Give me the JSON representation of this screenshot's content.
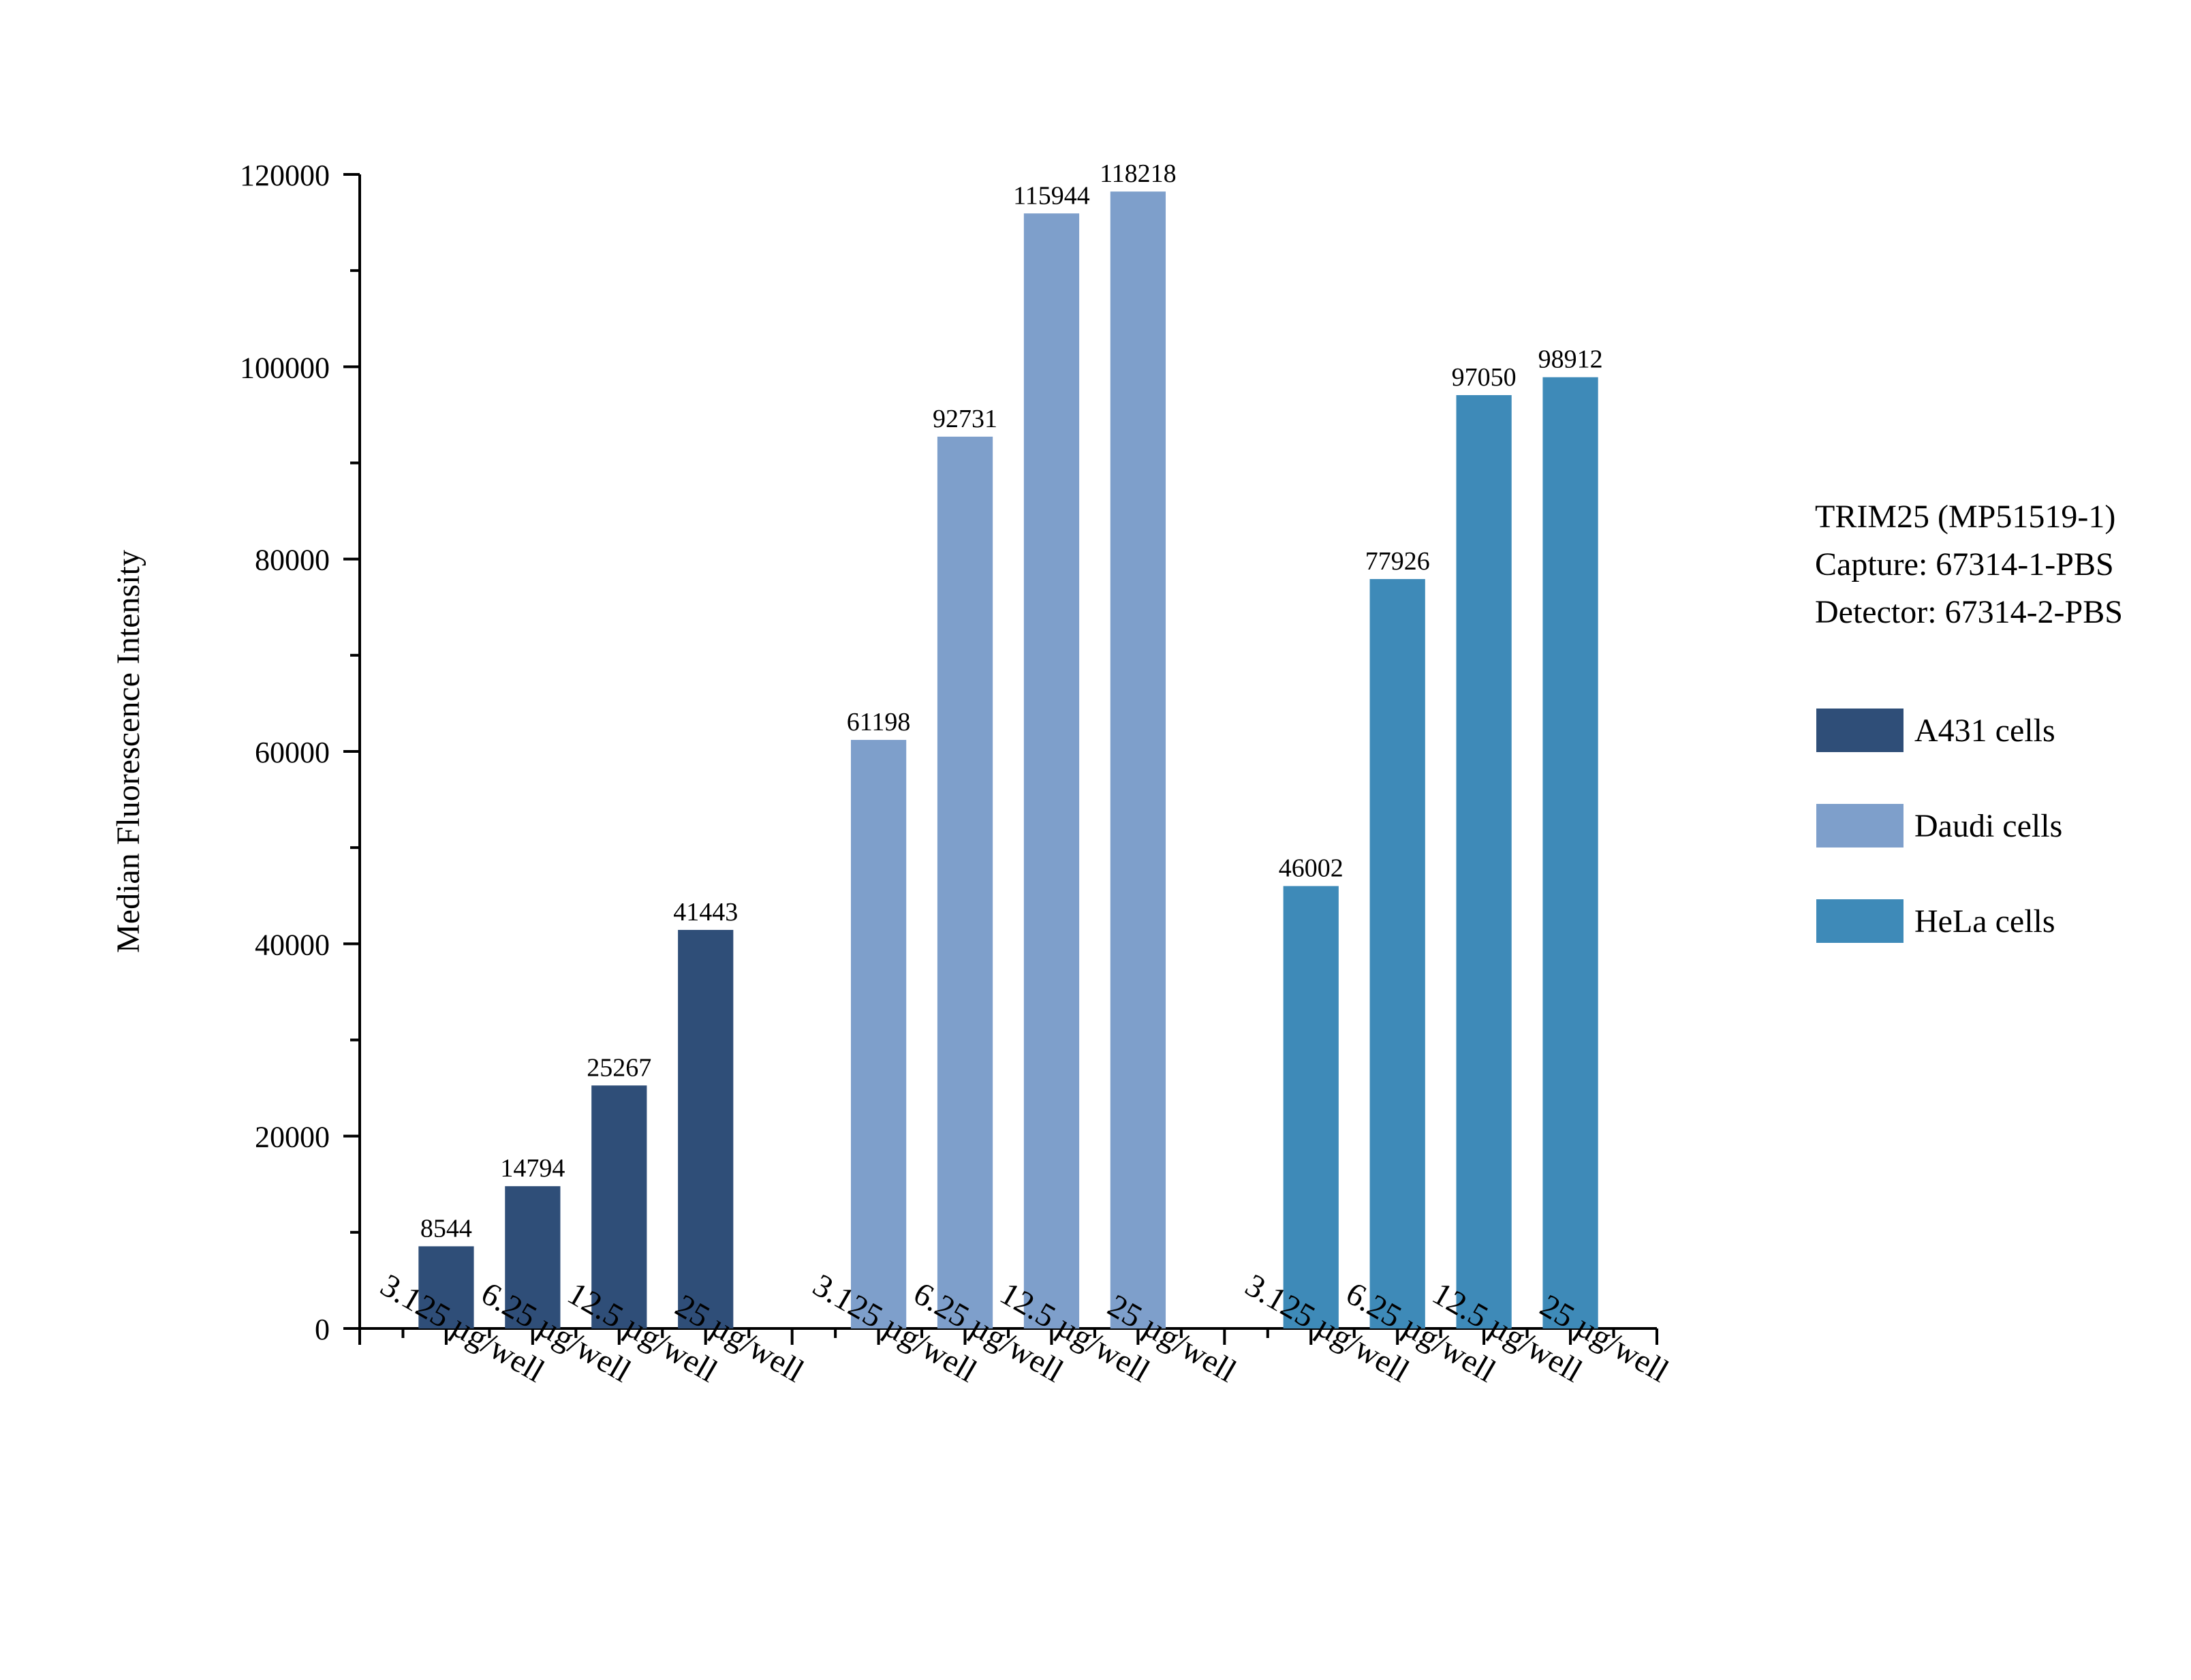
{
  "chart_data": {
    "type": "bar",
    "title": "",
    "xlabel": "",
    "ylabel": "Median Fluorescence Intensity",
    "ylim": [
      0,
      120000
    ],
    "yticks": [
      0,
      20000,
      40000,
      60000,
      80000,
      100000,
      120000
    ],
    "ytick_labels": [
      "0",
      "20000",
      "40000",
      "60000",
      "80000",
      "100000",
      "120000"
    ],
    "categories": [
      "3.125 µg/well",
      "6.25 µg/well",
      "12.5 µg/well",
      "25 µg/well"
    ],
    "series": [
      {
        "name": "A431 cells",
        "color": "#2f4e78",
        "values": [
          8544,
          14794,
          25267,
          41443
        ],
        "labels": [
          "8544",
          "14794",
          "25267",
          "41443"
        ]
      },
      {
        "name": "Daudi cells",
        "color": "#7e9fcb",
        "values": [
          61198,
          92731,
          115944,
          118218
        ],
        "labels": [
          "61198",
          "92731",
          "115944",
          "118218"
        ]
      },
      {
        "name": "HeLa cells",
        "color": "#3e8ab8",
        "values": [
          46002,
          77926,
          97050,
          98912
        ],
        "labels": [
          "46002",
          "77926",
          "97050",
          "98912"
        ]
      }
    ],
    "legend": {
      "position": "right",
      "title_lines": [
        "TRIM25 (MP51519-1)",
        "Capture: 67314-1-PBS",
        "Detector: 67314-2-PBS"
      ]
    }
  }
}
